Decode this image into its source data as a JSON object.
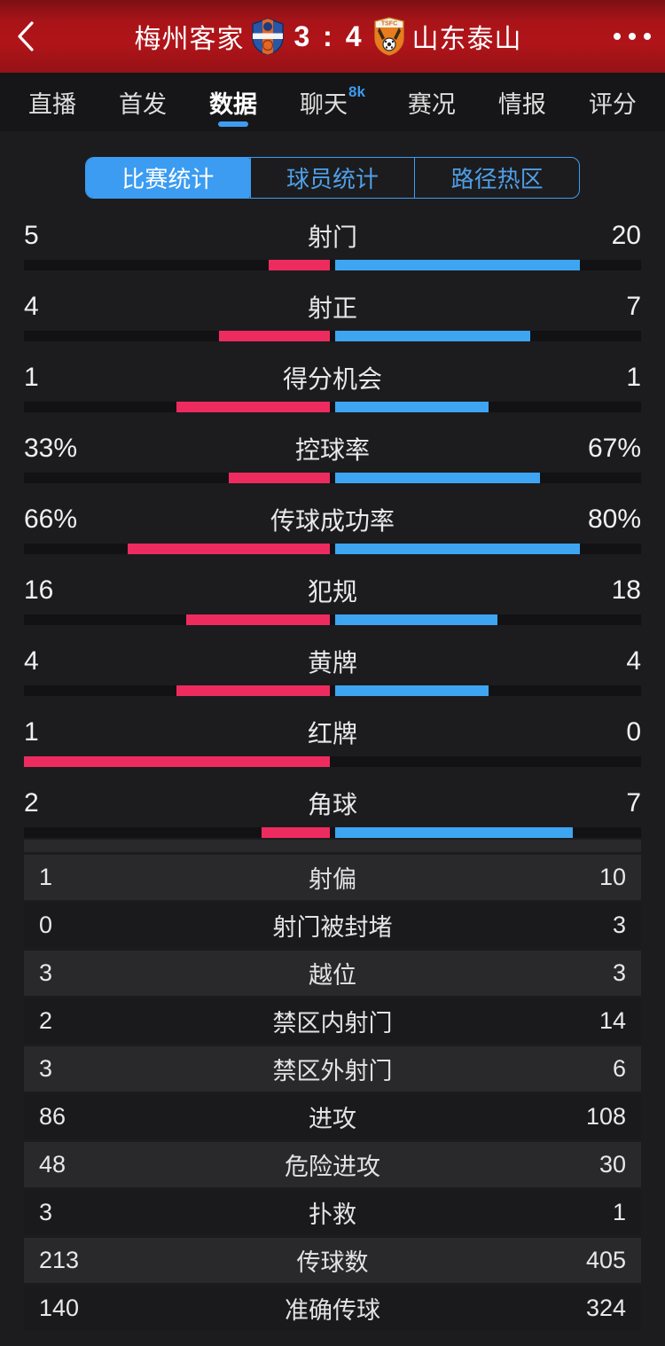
{
  "header": {
    "home_team": "梅州客家",
    "away_team": "山东泰山",
    "score": "3 : 4",
    "back_icon": "chevron-left",
    "more_icon": "ellipsis"
  },
  "tabs": [
    {
      "label": "直播",
      "active": false,
      "badge": ""
    },
    {
      "label": "首发",
      "active": false,
      "badge": ""
    },
    {
      "label": "数据",
      "active": true,
      "badge": ""
    },
    {
      "label": "聊天",
      "active": false,
      "badge": "8k"
    },
    {
      "label": "赛况",
      "active": false,
      "badge": ""
    },
    {
      "label": "情报",
      "active": false,
      "badge": ""
    },
    {
      "label": "评分",
      "active": false,
      "badge": ""
    }
  ],
  "segments": [
    {
      "label": "比赛统计",
      "active": true
    },
    {
      "label": "球员统计",
      "active": false
    },
    {
      "label": "路径热区",
      "active": false
    }
  ],
  "chart_data": {
    "type": "bar",
    "title": "比赛统计",
    "legend": [
      "梅州客家",
      "山东泰山"
    ],
    "bar_stats": [
      {
        "label": "射门",
        "home": 5,
        "away": 20,
        "unit": ""
      },
      {
        "label": "射正",
        "home": 4,
        "away": 7,
        "unit": ""
      },
      {
        "label": "得分机会",
        "home": 1,
        "away": 1,
        "unit": ""
      },
      {
        "label": "控球率",
        "home": 33,
        "away": 67,
        "unit": "%"
      },
      {
        "label": "传球成功率",
        "home": 66,
        "away": 80,
        "unit": "%"
      },
      {
        "label": "犯规",
        "home": 16,
        "away": 18,
        "unit": ""
      },
      {
        "label": "黄牌",
        "home": 4,
        "away": 4,
        "unit": ""
      },
      {
        "label": "红牌",
        "home": 1,
        "away": 0,
        "unit": ""
      },
      {
        "label": "角球",
        "home": 2,
        "away": 7,
        "unit": ""
      }
    ],
    "table_stats": [
      {
        "label": "射偏",
        "home": 1,
        "away": 10
      },
      {
        "label": "射门被封堵",
        "home": 0,
        "away": 3
      },
      {
        "label": "越位",
        "home": 3,
        "away": 3
      },
      {
        "label": "禁区内射门",
        "home": 2,
        "away": 14
      },
      {
        "label": "禁区外射门",
        "home": 3,
        "away": 6
      },
      {
        "label": "进攻",
        "home": 86,
        "away": 108
      },
      {
        "label": "危险进攻",
        "home": 48,
        "away": 30
      },
      {
        "label": "扑救",
        "home": 3,
        "away": 1
      },
      {
        "label": "传球数",
        "home": 213,
        "away": 405
      },
      {
        "label": "准确传球",
        "home": 140,
        "away": 324
      }
    ]
  },
  "colors": {
    "home_bar": "#ee2b5f",
    "away_bar": "#3ea5f2",
    "accent_blue": "#3f9cf2",
    "header_red": "#a91418",
    "bar_track": "#121214",
    "row_light": "#29292c",
    "row_dark": "#1a1a1c"
  }
}
